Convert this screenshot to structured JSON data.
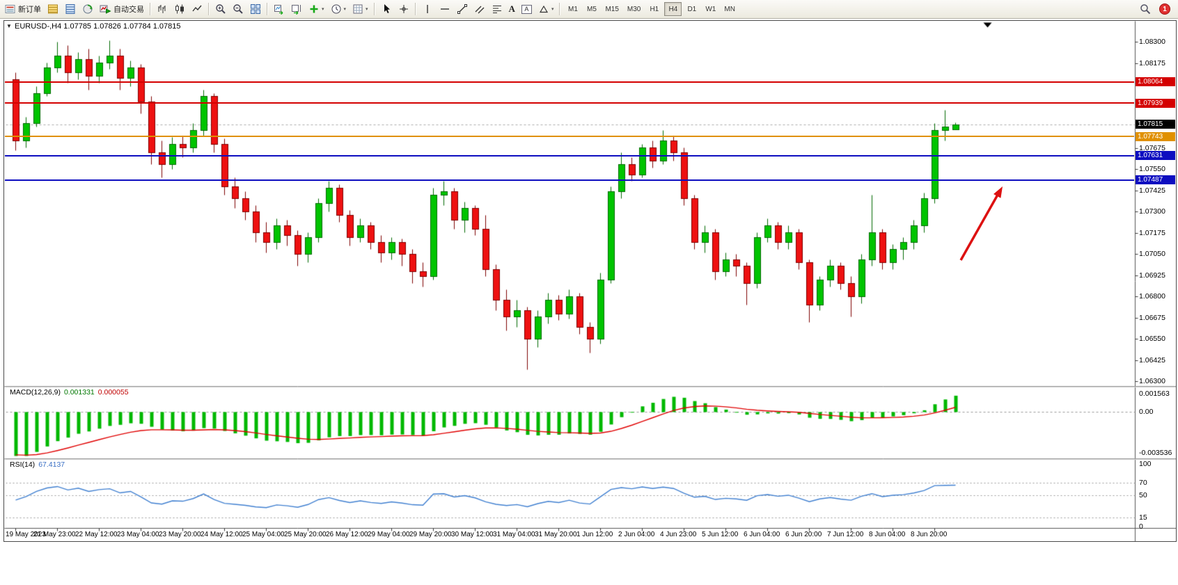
{
  "toolbar": {
    "new_order_label": "新订单",
    "autotrading_label": "自动交易",
    "timeframes": [
      "M1",
      "M5",
      "M15",
      "M30",
      "H1",
      "H4",
      "D1",
      "W1",
      "MN"
    ],
    "active_timeframe": "H4",
    "notification_count": "1"
  },
  "icons": {
    "caret_down": "▾",
    "one_click": "▼",
    "text_tool": "A"
  },
  "chart": {
    "title": "EURUSD-,H4 1.07785 1.07826 1.07784 1.07815",
    "symbol": "EURUSD-",
    "period": "H4",
    "open": "1.07785",
    "high": "1.07826",
    "low": "1.07784",
    "close": "1.07815"
  },
  "price_axis": {
    "view_max": 1.084,
    "view_min": 1.0628,
    "ticks": [
      "1.08300",
      "1.08175",
      "1.07675",
      "1.07550",
      "1.07425",
      "1.07300",
      "1.07175",
      "1.07050",
      "1.06925",
      "1.06800",
      "1.06675",
      "1.06550",
      "1.06425",
      "1.06300"
    ]
  },
  "levels": [
    {
      "label": "1.08064",
      "value": 1.08064,
      "color": "#d40000"
    },
    {
      "label": "1.07939",
      "value": 1.07939,
      "color": "#d40000"
    },
    {
      "label": "1.07743",
      "value": 1.07743,
      "color": "#e09000"
    },
    {
      "label": "1.07631",
      "value": 1.07631,
      "color": "#0d0dc0"
    },
    {
      "label": "1.07487",
      "value": 1.07487,
      "color": "#0d0dc0"
    }
  ],
  "current_price": {
    "label": "1.07815",
    "value": 1.07815,
    "color": "#000000"
  },
  "chart_data": {
    "type": "candlestick",
    "symbol": "EURUSD-",
    "timeframe": "H4",
    "label_every_n_candles": 4,
    "time_labels": [
      "19 May 2023",
      "21 May 23:00",
      "22 May 12:00",
      "23 May 04:00",
      "23 May 20:00",
      "24 May 12:00",
      "25 May 04:00",
      "25 May 20:00",
      "26 May 12:00",
      "29 May 04:00",
      "29 May 20:00",
      "30 May 12:00",
      "31 May 04:00",
      "31 May 20:00",
      "1 Jun 12:00",
      "2 Jun 04:00",
      "4 Jun 23:00",
      "5 Jun 12:00",
      "6 Jun 04:00",
      "6 Jun 20:00",
      "7 Jun 12:00",
      "8 Jun 04:00",
      "8 Jun 20:00"
    ],
    "candles": [
      [
        1.0808,
        1.0812,
        1.0766,
        1.0772
      ],
      [
        1.0772,
        1.0786,
        1.0768,
        1.0782
      ],
      [
        1.0782,
        1.0804,
        1.078,
        1.08
      ],
      [
        1.08,
        1.0818,
        1.0798,
        1.0815
      ],
      [
        1.0815,
        1.083,
        1.0812,
        1.0822
      ],
      [
        1.0822,
        1.0828,
        1.0806,
        1.0812
      ],
      [
        1.0812,
        1.0824,
        1.0808,
        1.082
      ],
      [
        1.082,
        1.0826,
        1.0802,
        1.081
      ],
      [
        1.081,
        1.0822,
        1.0806,
        1.0818
      ],
      [
        1.0818,
        1.0831,
        1.0814,
        1.0822
      ],
      [
        1.0822,
        1.0826,
        1.0802,
        1.0809
      ],
      [
        1.0809,
        1.0819,
        1.0804,
        1.0815
      ],
      [
        1.0815,
        1.0817,
        1.0788,
        1.0795
      ],
      [
        1.0795,
        1.0798,
        1.0758,
        1.0765
      ],
      [
        1.0765,
        1.0772,
        1.075,
        1.0758
      ],
      [
        1.0758,
        1.0774,
        1.0755,
        1.077
      ],
      [
        1.077,
        1.0775,
        1.0762,
        1.0768
      ],
      [
        1.0768,
        1.0782,
        1.0765,
        1.0778
      ],
      [
        1.0778,
        1.0802,
        1.0775,
        1.0798
      ],
      [
        1.0798,
        1.08,
        1.0765,
        1.077
      ],
      [
        1.077,
        1.0773,
        1.074,
        1.0745
      ],
      [
        1.0745,
        1.075,
        1.0732,
        1.0738
      ],
      [
        1.0738,
        1.0742,
        1.0725,
        1.073
      ],
      [
        1.073,
        1.0734,
        1.0712,
        1.0718
      ],
      [
        1.0718,
        1.0724,
        1.0706,
        1.0712
      ],
      [
        1.0712,
        1.0726,
        1.0708,
        1.0722
      ],
      [
        1.0722,
        1.0725,
        1.071,
        1.0716
      ],
      [
        1.0716,
        1.0719,
        1.0698,
        1.0705
      ],
      [
        1.0705,
        1.0718,
        1.07,
        1.0715
      ],
      [
        1.0715,
        1.0738,
        1.0712,
        1.0735
      ],
      [
        1.0735,
        1.0748,
        1.073,
        1.0744
      ],
      [
        1.0744,
        1.0746,
        1.0724,
        1.0728
      ],
      [
        1.0728,
        1.0731,
        1.071,
        1.0715
      ],
      [
        1.0715,
        1.0726,
        1.0712,
        1.0722
      ],
      [
        1.0722,
        1.0724,
        1.0708,
        1.0712
      ],
      [
        1.0712,
        1.0716,
        1.07,
        1.0706
      ],
      [
        1.0706,
        1.0715,
        1.0702,
        1.0712
      ],
      [
        1.0712,
        1.0714,
        1.0698,
        1.0705
      ],
      [
        1.0705,
        1.0708,
        1.0688,
        1.0695
      ],
      [
        1.0695,
        1.07,
        1.0686,
        1.0692
      ],
      [
        1.0692,
        1.0744,
        1.069,
        1.074
      ],
      [
        1.074,
        1.0748,
        1.0734,
        1.0742
      ],
      [
        1.0742,
        1.0744,
        1.072,
        1.0725
      ],
      [
        1.0725,
        1.0736,
        1.0718,
        1.0732
      ],
      [
        1.0732,
        1.0734,
        1.0716,
        1.072
      ],
      [
        1.072,
        1.0728,
        1.0692,
        1.0696
      ],
      [
        1.0696,
        1.0699,
        1.0672,
        1.0678
      ],
      [
        1.0678,
        1.0684,
        1.066,
        1.0668
      ],
      [
        1.0668,
        1.0678,
        1.0662,
        1.0672
      ],
      [
        1.0672,
        1.0674,
        1.0637,
        1.0655
      ],
      [
        1.0655,
        1.0672,
        1.065,
        1.0668
      ],
      [
        1.0668,
        1.0682,
        1.0664,
        1.0678
      ],
      [
        1.0678,
        1.0681,
        1.0666,
        1.067
      ],
      [
        1.067,
        1.0684,
        1.0667,
        1.068
      ],
      [
        1.068,
        1.0682,
        1.0658,
        1.0662
      ],
      [
        1.0662,
        1.0665,
        1.0647,
        1.0655
      ],
      [
        1.0655,
        1.0694,
        1.0652,
        1.069
      ],
      [
        1.069,
        1.0745,
        1.0688,
        1.0742
      ],
      [
        1.0742,
        1.0765,
        1.0738,
        1.0758
      ],
      [
        1.0758,
        1.0762,
        1.0748,
        1.0752
      ],
      [
        1.0752,
        1.077,
        1.075,
        1.0768
      ],
      [
        1.0768,
        1.0772,
        1.0756,
        1.076
      ],
      [
        1.076,
        1.0778,
        1.0758,
        1.0772
      ],
      [
        1.0772,
        1.0775,
        1.076,
        1.0765
      ],
      [
        1.0765,
        1.0768,
        1.0734,
        1.0738
      ],
      [
        1.0738,
        1.074,
        1.0708,
        1.0712
      ],
      [
        1.0712,
        1.0722,
        1.0706,
        1.0718
      ],
      [
        1.0718,
        1.072,
        1.069,
        1.0695
      ],
      [
        1.0695,
        1.0706,
        1.0692,
        1.0702
      ],
      [
        1.0702,
        1.0705,
        1.0692,
        1.0698
      ],
      [
        1.0698,
        1.07,
        1.0675,
        1.0688
      ],
      [
        1.0688,
        1.0718,
        1.0685,
        1.0715
      ],
      [
        1.0715,
        1.0726,
        1.0712,
        1.0722
      ],
      [
        1.0722,
        1.0724,
        1.0708,
        1.0712
      ],
      [
        1.0712,
        1.0722,
        1.0708,
        1.0718
      ],
      [
        1.0718,
        1.072,
        1.0696,
        1.07
      ],
      [
        1.07,
        1.0702,
        1.0665,
        1.0675
      ],
      [
        1.0675,
        1.0692,
        1.0672,
        1.069
      ],
      [
        1.069,
        1.0702,
        1.0686,
        1.0698
      ],
      [
        1.0698,
        1.07,
        1.0684,
        1.0688
      ],
      [
        1.0688,
        1.0692,
        1.0668,
        1.068
      ],
      [
        1.068,
        1.0705,
        1.0676,
        1.0702
      ],
      [
        1.0702,
        1.074,
        1.0698,
        1.0718
      ],
      [
        1.0718,
        1.072,
        1.0696,
        1.07
      ],
      [
        1.07,
        1.0711,
        1.0696,
        1.0708
      ],
      [
        1.0708,
        1.0715,
        1.0702,
        1.0712
      ],
      [
        1.0712,
        1.0725,
        1.0708,
        1.0722
      ],
      [
        1.0722,
        1.0741,
        1.0718,
        1.0738
      ],
      [
        1.0738,
        1.0782,
        1.0735,
        1.0778
      ],
      [
        1.0778,
        1.079,
        1.0772,
        1.078
      ],
      [
        1.07785,
        1.07826,
        1.07784,
        1.07815
      ]
    ]
  },
  "macd": {
    "label": "MACD(12,26,9)",
    "value_main": "0.001331",
    "value_signal": "0.000055",
    "params": {
      "fast": 12,
      "slow": 26,
      "signal": 9
    },
    "axis_labels": [
      {
        "text": "0.001563",
        "value": 0.001563
      },
      {
        "text": "0.00",
        "value": 0
      },
      {
        "text": "-0.003536",
        "value": -0.003536
      }
    ],
    "view_max": 0.0018,
    "view_min": -0.0038,
    "seed": {
      "ema_fast_init": 1.0789,
      "ema_slow_init": 1.0832,
      "signal_init": -0.0036
    },
    "colors": {
      "histogram": "#00b800",
      "signal": "#e00000"
    }
  },
  "rsi": {
    "label": "RSI(14)",
    "value": "67.4137",
    "period": 14,
    "axis_labels": [
      {
        "text": "100",
        "value": 100
      },
      {
        "text": "70",
        "value": 70
      },
      {
        "text": "50",
        "value": 50
      },
      {
        "text": "15",
        "value": 15
      },
      {
        "text": "0",
        "value": 0
      }
    ],
    "levels_dotted": [
      70,
      50,
      15
    ],
    "seed": {
      "avg_gain_init": 0.0003,
      "avg_loss_init": 0.0004
    },
    "color": "#3f7fd0"
  },
  "annotation_arrow": {
    "color": "#dd1111"
  },
  "candle_colors": {
    "up_fill": "#00c400",
    "up_stroke": "#006a00",
    "down_fill": "#ee1111",
    "down_stroke": "#7e0000"
  }
}
